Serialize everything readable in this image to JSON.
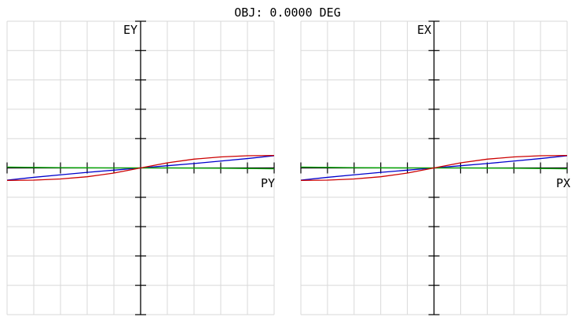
{
  "header": {
    "title": "OBJ: 0.0000 DEG"
  },
  "colors": {
    "grid": "#d9d9d9",
    "axis": "#000000",
    "background": "#ffffff"
  },
  "chart_data": [
    {
      "type": "line",
      "xlabel": "PY",
      "ylabel": "EY",
      "xlim": [
        -1,
        1
      ],
      "ylim": [
        -1,
        1
      ],
      "grid": true,
      "x": [
        -1.0,
        -0.8,
        -0.6,
        -0.4,
        -0.2,
        0.0,
        0.2,
        0.4,
        0.6,
        0.8,
        1.0
      ],
      "series": [
        {
          "color": "#0000cc",
          "values": [
            -0.083,
            -0.064,
            -0.047,
            -0.03,
            -0.015,
            0.0,
            0.015,
            0.03,
            0.047,
            0.064,
            0.083
          ]
        },
        {
          "color": "#00aa00",
          "values": [
            0.006,
            0.004,
            0.002,
            0.001,
            0.0,
            0.0,
            0.0,
            -0.001,
            -0.002,
            -0.004,
            -0.006
          ]
        },
        {
          "color": "#cc0000",
          "values": [
            -0.085,
            -0.083,
            -0.075,
            -0.06,
            -0.035,
            0.0,
            0.035,
            0.06,
            0.075,
            0.083,
            0.085
          ]
        }
      ]
    },
    {
      "type": "line",
      "xlabel": "PX",
      "ylabel": "EX",
      "xlim": [
        -1,
        1
      ],
      "ylim": [
        -1,
        1
      ],
      "grid": true,
      "x": [
        -1.0,
        -0.8,
        -0.6,
        -0.4,
        -0.2,
        0.0,
        0.2,
        0.4,
        0.6,
        0.8,
        1.0
      ],
      "series": [
        {
          "color": "#0000cc",
          "values": [
            -0.083,
            -0.064,
            -0.047,
            -0.03,
            -0.015,
            0.0,
            0.015,
            0.03,
            0.047,
            0.064,
            0.083
          ]
        },
        {
          "color": "#00aa00",
          "values": [
            0.006,
            0.004,
            0.002,
            0.001,
            0.0,
            0.0,
            0.0,
            -0.001,
            -0.002,
            -0.004,
            -0.006
          ]
        },
        {
          "color": "#cc0000",
          "values": [
            -0.085,
            -0.083,
            -0.075,
            -0.06,
            -0.035,
            0.0,
            0.035,
            0.06,
            0.075,
            0.083,
            0.085
          ]
        }
      ]
    }
  ]
}
